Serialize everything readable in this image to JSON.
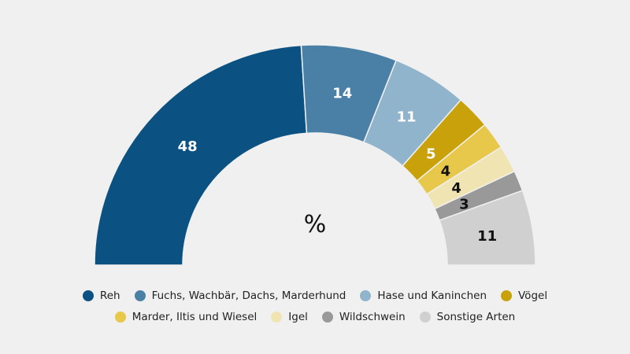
{
  "chart_data": {
    "type": "pie",
    "subtype": "semi-donut",
    "center_label": "%",
    "categories": [
      "Reh",
      "Fuchs, Wachbär, Dachs, Marderhund",
      "Hase und Kaninchen",
      "Vögel",
      "Marder, Iltis und Wiesel",
      "Igel",
      "Wildschwein",
      "Sonstige Arten"
    ],
    "values": [
      48,
      14,
      11,
      5,
      4,
      4,
      3,
      11
    ],
    "colors": [
      "#0b5282",
      "#4a80a6",
      "#8fb4cb",
      "#c9a20b",
      "#e8c84b",
      "#f0e4b3",
      "#999999",
      "#d0d0d0"
    ],
    "label_colors": [
      "#ffffff",
      "#ffffff",
      "#ffffff",
      "#ffffff",
      "#111111",
      "#111111",
      "#111111",
      "#111111"
    ],
    "legend_placement": "bottom"
  }
}
